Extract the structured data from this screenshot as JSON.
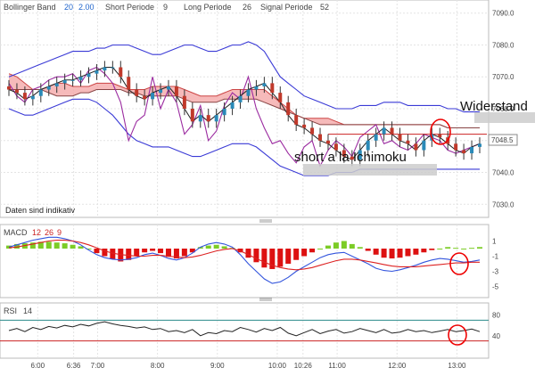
{
  "header": {
    "bb_label": "Bollinger Band",
    "bb_p1": "20",
    "bb_p2": "2.00",
    "short_label": "Short Periode",
    "short_val": "9",
    "long_label": "Long Periode",
    "long_val": "26",
    "signal_label": "Signal Periode",
    "signal_val": "52"
  },
  "main_note": "Daten sind indikativ",
  "price_badge": "7048.5",
  "annotations": {
    "widerstand": "Widerstand",
    "short": "short a la Ichimoku"
  },
  "macd_label": {
    "name": "MACD",
    "p1": "12",
    "p2": "26",
    "p3": "9"
  },
  "rsi_label": {
    "name": "RSI",
    "p": "14"
  },
  "colors": {
    "candle_up": "#2a8ab8",
    "candle_down": "#c0392b",
    "bollinger": "#3a3ad6",
    "ichimoku": "#9b2ba0",
    "macd_pos": "#7ccc26",
    "macd_neg": "#dd1111",
    "circle": "#ee0000"
  },
  "chart_data": [
    {
      "type": "candlestick",
      "y_ticks": [
        "7090.0",
        "7080.0",
        "7070.0",
        "7060.0",
        "7050.0",
        "7040.0",
        "7030.0"
      ],
      "ylim": [
        7027,
        7093
      ],
      "x_ticks": [
        "6:00",
        "6:36",
        "7:00",
        "8:00",
        "9:00",
        "10:00",
        "10:26",
        "11:00",
        "12:00",
        "13:00"
      ],
      "x_tick_hours": [
        6,
        6.6,
        7,
        8,
        9,
        10,
        10.43,
        11,
        12,
        13
      ],
      "x_range_hours": [
        5.4,
        13.5
      ],
      "close": [
        7066,
        7065,
        7063,
        7064,
        7066,
        7067,
        7068,
        7069,
        7069,
        7070,
        7071,
        7072,
        7073,
        7073,
        7070,
        7066,
        7064,
        7063,
        7065,
        7066,
        7067,
        7064,
        7060,
        7056,
        7058,
        7056,
        7058,
        7060,
        7062,
        7064,
        7066,
        7067,
        7068,
        7065,
        7062,
        7058,
        7055,
        7054,
        7052,
        7050,
        7049,
        7047,
        7045,
        7044,
        7047,
        7050,
        7052,
        7054,
        7052,
        7050,
        7049,
        7047,
        7050,
        7052,
        7051,
        7049,
        7047,
        7046,
        7048,
        7049
      ],
      "bollinger_upper": [
        7070,
        7071,
        7072,
        7073,
        7074,
        7075,
        7076,
        7077,
        7078,
        7078,
        7078,
        7079,
        7079,
        7080,
        7080,
        7080,
        7079,
        7078,
        7077,
        7077,
        7078,
        7079,
        7080,
        7080,
        7079,
        7078,
        7078,
        7079,
        7080,
        7080,
        7081,
        7080,
        7078,
        7074,
        7070,
        7068,
        7066,
        7064,
        7063,
        7062,
        7061,
        7060,
        7060,
        7060,
        7061,
        7061,
        7061,
        7062,
        7062,
        7062,
        7061,
        7061,
        7061,
        7061,
        7061,
        7060,
        7060,
        7059,
        7059,
        7059
      ],
      "bollinger_lower": [
        7060,
        7059,
        7058,
        7058,
        7059,
        7060,
        7061,
        7062,
        7063,
        7063,
        7063,
        7062,
        7060,
        7058,
        7055,
        7052,
        7050,
        7049,
        7048,
        7048,
        7048,
        7047,
        7046,
        7045,
        7045,
        7046,
        7047,
        7048,
        7049,
        7049,
        7049,
        7048,
        7046,
        7044,
        7042,
        7041,
        7040,
        7039,
        7039,
        7039,
        7039,
        7040,
        7040,
        7040,
        7041,
        7041,
        7041,
        7041,
        7041,
        7041,
        7041,
        7041,
        7041,
        7041,
        7041,
        7041,
        7041,
        7041,
        7041,
        7041
      ],
      "ichimoku_line": [
        7068,
        7064,
        7062,
        7066,
        7067,
        7069,
        7070,
        7070,
        7071,
        7068,
        7072,
        7073,
        7071,
        7068,
        7062,
        7050,
        7056,
        7058,
        7070,
        7060,
        7066,
        7062,
        7052,
        7055,
        7061,
        7050,
        7053,
        7061,
        7065,
        7063,
        7070,
        7060,
        7054,
        7049,
        7050,
        7046,
        7043,
        7048,
        7050,
        7042,
        7047,
        7050,
        7048,
        7045,
        7051,
        7053,
        7055,
        7049,
        7050,
        7048,
        7047,
        7049,
        7052,
        7051,
        7050,
        7047,
        7046,
        7047,
        7048,
        7049
      ],
      "resistance": 7052,
      "cloud_upper": [
        7071,
        7070,
        7068,
        7066,
        7066,
        7067,
        7068,
        7068,
        7067,
        7067,
        7067,
        7068,
        7068,
        7068,
        7067,
        7066,
        7066,
        7066,
        7067,
        7067,
        7067,
        7067,
        7066,
        7065,
        7064,
        7064,
        7064,
        7065,
        7066,
        7066,
        7066,
        7066,
        7066,
        7064,
        7062,
        7060,
        7058,
        7057,
        7057,
        7057,
        7057,
        7056,
        7055,
        7055,
        7055,
        7055,
        7055,
        7055,
        7055,
        7055,
        7055,
        7055,
        7055,
        7055,
        7055,
        7054,
        7054,
        7054,
        7054,
        7054
      ],
      "cloud_lower": [
        7066,
        7066,
        7066,
        7066,
        7066,
        7065,
        7064,
        7064,
        7064,
        7065,
        7065,
        7066,
        7066,
        7066,
        7066,
        7065,
        7065,
        7064,
        7064,
        7064,
        7064,
        7064,
        7063,
        7062,
        7062,
        7062,
        7062,
        7063,
        7063,
        7063,
        7063,
        7063,
        7062,
        7061,
        7060,
        7059,
        7058,
        7057,
        7056,
        7055,
        7055,
        7055,
        7055,
        7055,
        7055,
        7055,
        7055,
        7055,
        7055,
        7055,
        7055,
        7055,
        7055,
        7055,
        7055,
        7054,
        7054,
        7054,
        7054,
        7054
      ],
      "current_price": 7048.5
    },
    {
      "type": "bar",
      "name": "MACD",
      "y_ticks": [
        "1",
        "-1",
        "-3",
        "-5"
      ],
      "ylim": [
        -6,
        2
      ],
      "histogram": [
        0.4,
        0.6,
        0.7,
        0.8,
        0.9,
        0.9,
        0.8,
        0.7,
        0.5,
        0.3,
        0.0,
        -0.6,
        -1.0,
        -1.4,
        -1.7,
        -1.5,
        -1.0,
        -0.5,
        -0.3,
        -0.6,
        -1.1,
        -1.3,
        -1.0,
        -0.5,
        0.2,
        0.4,
        0.5,
        0.3,
        0.1,
        -0.5,
        -1.2,
        -1.8,
        -2.5,
        -2.7,
        -2.4,
        -2.0,
        -1.5,
        -1.0,
        -0.5,
        0.0,
        0.4,
        0.8,
        1.0,
        0.6,
        0.2,
        -0.3,
        -0.8,
        -1.2,
        -1.3,
        -1.2,
        -1.0,
        -0.8,
        -0.5,
        -0.2,
        0.0,
        0.2,
        0.1,
        0.0,
        0.1,
        0.2
      ],
      "macd_line": [
        0.2,
        0.5,
        0.8,
        1.1,
        1.3,
        1.5,
        1.5,
        1.3,
        1.0,
        0.5,
        -0.2,
        -0.8,
        -1.2,
        -1.4,
        -1.5,
        -1.4,
        -1.2,
        -0.8,
        -0.6,
        -0.9,
        -1.3,
        -1.5,
        -1.2,
        -0.6,
        0.2,
        0.6,
        0.8,
        0.6,
        0.2,
        -0.8,
        -2.0,
        -3.0,
        -4.0,
        -4.6,
        -4.4,
        -3.8,
        -3.0,
        -2.4,
        -1.8,
        -1.2,
        -0.8,
        -0.6,
        -0.5,
        -1.0,
        -1.5,
        -2.0,
        -2.6,
        -2.9,
        -3.0,
        -2.8,
        -2.5,
        -2.2,
        -1.8,
        -1.5,
        -1.3,
        -1.4,
        -1.6,
        -1.8,
        -1.7,
        -1.5
      ],
      "signal_line": [
        0.1,
        0.2,
        0.4,
        0.6,
        0.8,
        1.0,
        1.1,
        1.1,
        1.0,
        0.8,
        0.5,
        0.1,
        -0.3,
        -0.6,
        -0.8,
        -0.9,
        -1.0,
        -1.0,
        -0.9,
        -0.9,
        -1.0,
        -1.1,
        -1.2,
        -1.1,
        -0.9,
        -0.6,
        -0.3,
        -0.1,
        0.0,
        -0.3,
        -0.8,
        -1.3,
        -1.8,
        -2.2,
        -2.5,
        -2.7,
        -2.8,
        -2.7,
        -2.5,
        -2.2,
        -1.9,
        -1.6,
        -1.4,
        -1.4,
        -1.5,
        -1.7,
        -1.9,
        -2.1,
        -2.3,
        -2.4,
        -2.4,
        -2.4,
        -2.3,
        -2.2,
        -2.1,
        -2.0,
        -1.9,
        -1.9,
        -1.8,
        -1.8
      ]
    },
    {
      "type": "line",
      "name": "RSI",
      "y_ticks": [
        "80",
        "40"
      ],
      "ylim": [
        0,
        100
      ],
      "levels": [
        70,
        30
      ],
      "values": [
        50,
        54,
        48,
        56,
        52,
        58,
        55,
        60,
        57,
        62,
        59,
        64,
        67,
        63,
        60,
        58,
        55,
        57,
        52,
        54,
        48,
        50,
        46,
        52,
        40,
        46,
        44,
        50,
        48,
        56,
        52,
        47,
        54,
        50,
        56,
        45,
        40,
        46,
        52,
        44,
        49,
        52,
        45,
        48,
        54,
        50,
        46,
        52,
        45,
        47,
        52,
        48,
        50,
        46,
        49,
        52,
        48,
        50,
        53,
        48
      ]
    }
  ]
}
